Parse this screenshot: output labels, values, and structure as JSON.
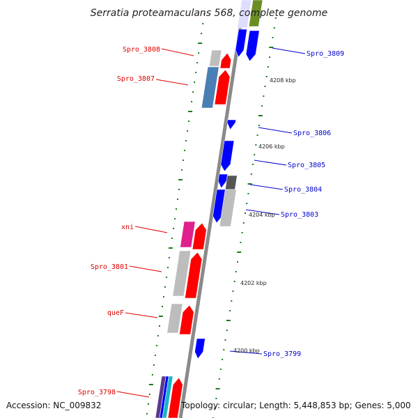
{
  "title": "Serratia proteamaculans 568, complete genome",
  "footer": {
    "accession": "Accession: NC_009832",
    "topology": "Topology: circular; Length: 5,448,853 bp; Genes: 5,000"
  },
  "colors": {
    "forward_label": "#dd0000",
    "reverse_label": "#0000cc",
    "tick": "#1a7a1a",
    "backbone": "#8a8a8a"
  },
  "kbp_labels": [
    "4208 kbp",
    "4206 kbp",
    "4204 kbp",
    "4202 kbp",
    "4200 kbp"
  ],
  "gene_labels": [
    {
      "text": "Spro_3808",
      "strand": "forward"
    },
    {
      "text": "Spro_3807",
      "strand": "forward"
    },
    {
      "text": "xni",
      "strand": "forward"
    },
    {
      "text": "Spro_3801",
      "strand": "forward"
    },
    {
      "text": "queF",
      "strand": "forward"
    },
    {
      "text": "Spro_3798",
      "strand": "forward"
    },
    {
      "text": "Spro_3809",
      "strand": "reverse"
    },
    {
      "text": "Spro_3806",
      "strand": "reverse"
    },
    {
      "text": "Spro_3805",
      "strand": "reverse"
    },
    {
      "text": "Spro_3804",
      "strand": "reverse"
    },
    {
      "text": "Spro_3803",
      "strand": "reverse"
    },
    {
      "text": "Spro_3799",
      "strand": "reverse"
    }
  ],
  "feature_colors": {
    "cds_forward": "#ff0000",
    "cds_reverse": "#0000ff",
    "gray": "#bdbdbd",
    "steel": "#4a7fb5",
    "magenta": "#e0208c",
    "olive": "#6b8e23",
    "dark_gray": "#555555",
    "cyan": "#19b5c8",
    "purple": "#5a3a8a"
  }
}
